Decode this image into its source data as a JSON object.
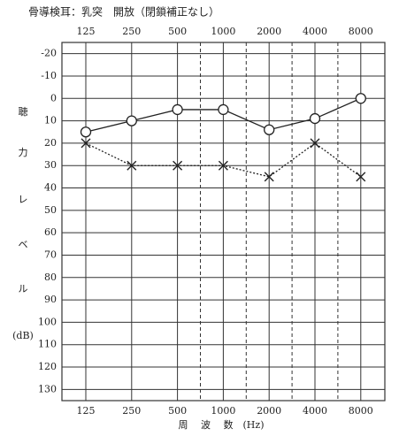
{
  "chart_data": {
    "type": "line",
    "title": "骨導検耳：乳突　開放（閉鎖補正なし）",
    "categories": [
      "125",
      "250",
      "500",
      "1000",
      "2000",
      "4000",
      "8000"
    ],
    "xlabel": "周　 波　 数　(Hz)",
    "ylabel": [
      "聴",
      "力",
      "レ",
      "ベ",
      "ル",
      "(dB)"
    ],
    "ylim": [
      -25,
      135
    ],
    "yticks": [
      -20,
      -10,
      0,
      10,
      20,
      30,
      40,
      50,
      60,
      70,
      80,
      90,
      100,
      110,
      120,
      130
    ],
    "inverted_y": true,
    "grid": true,
    "series": [
      {
        "marker": "circle",
        "line": "solid",
        "color": "#222",
        "values": [
          15,
          10,
          5,
          5,
          14,
          9,
          0
        ]
      },
      {
        "marker": "x",
        "line": "dotted",
        "color": "#222",
        "values": [
          20,
          30,
          30,
          30,
          35,
          20,
          35
        ]
      }
    ]
  }
}
